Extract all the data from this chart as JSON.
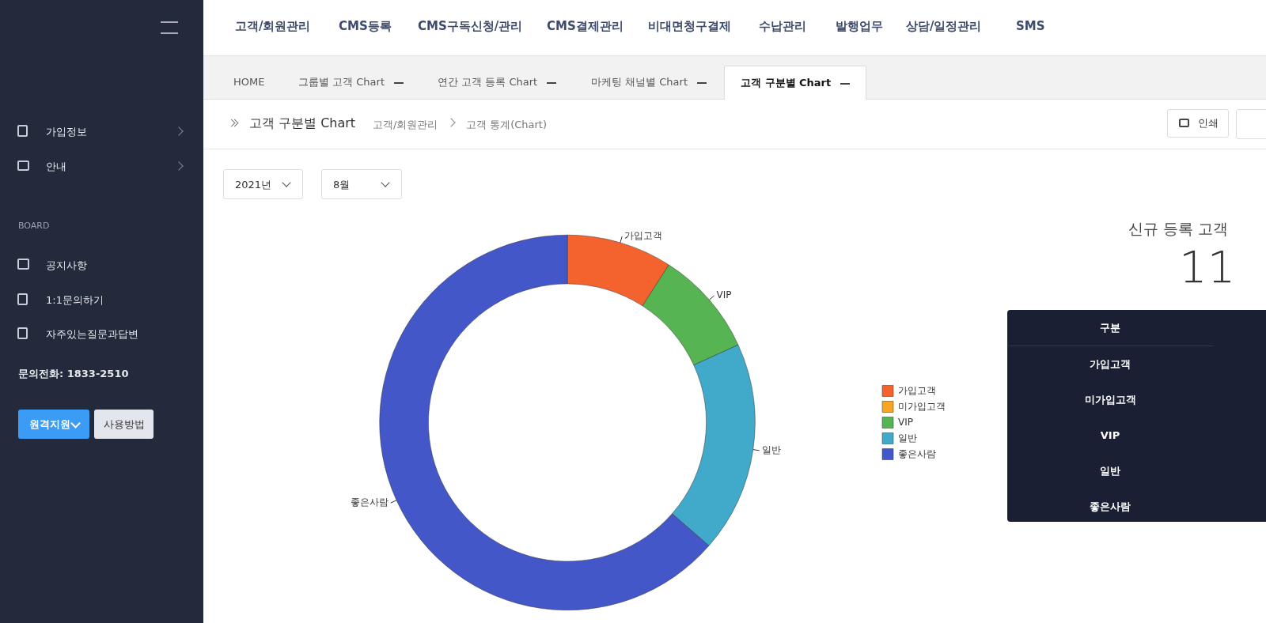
{
  "chart_data": [
    {
      "type": "donut",
      "categories": [
        "가입고객",
        "미가입고객",
        "VIP",
        "일반",
        "좋은사람"
      ],
      "values": [
        9.1,
        0,
        9.1,
        18.2,
        63.6
      ],
      "colors": [
        "#f4622e",
        "#f6a623",
        "#56b453",
        "#41a9c9",
        "#4357c8"
      ],
      "legend": "right"
    },
    {
      "type": "other",
      "annotations": [
        "고객/회원관리",
        "CMS등록",
        "CMS구독신청/관리",
        "CMS결제관리",
        "비대면청구결제",
        "수납관리",
        "발행업무",
        "상담/일정관리",
        "SMS",
        "HOME",
        "그룹별 고객 Chart",
        "연간 고객 등록 Chart",
        "마케팅 채널별 Chart",
        "고객 구분별 Chart",
        "고객 구분별 Chart",
        "고객/회원관리",
        "고객 통계(Chart)",
        "인쇄",
        "2021년",
        "8월",
        "가입정보",
        "안내",
        "BOARD",
        "공지사항",
        "1:1문의하기",
        "자주있는질문과답변",
        "문의전화: 1833-2510",
        "원격지원",
        "사용방법",
        "신규 등록 고객",
        "11",
        "구분"
      ]
    }
  ]
}
